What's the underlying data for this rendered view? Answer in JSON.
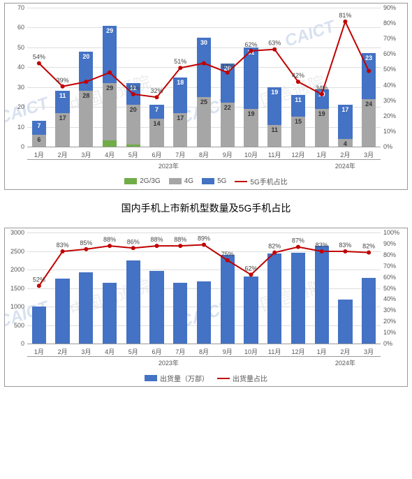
{
  "colors": {
    "series_2g3g": "#70ad47",
    "series_4g": "#a6a6a6",
    "series_5g": "#4472c4",
    "series_line": "#c00000",
    "bar_blue": "#4472c4",
    "grid": "#dddddd",
    "axis": "#999999",
    "bg": "#ffffff"
  },
  "chart1": {
    "type": "stacked_bar_with_line",
    "ylim_left": [
      0,
      70
    ],
    "ytick_left_step": 10,
    "ylim_right": [
      0,
      90
    ],
    "ytick_right_step": 10,
    "right_suffix": "%",
    "categories": [
      "1月",
      "2月",
      "3月",
      "4月",
      "5月",
      "6月",
      "7月",
      "8月",
      "9月",
      "10月",
      "11月",
      "12月",
      "1月",
      "2月",
      "3月"
    ],
    "year_spans": [
      {
        "label": "2023年",
        "from": 0,
        "to": 11
      },
      {
        "label": "2024年",
        "from": 12,
        "to": 14
      }
    ],
    "series": {
      "s2g3g": {
        "label": "2G/3G",
        "color": "#70ad47",
        "values": [
          0,
          0,
          0,
          3,
          1,
          0,
          0,
          0,
          0,
          0,
          0,
          0,
          0,
          0,
          0
        ]
      },
      "s4g": {
        "label": "4G",
        "color": "#a6a6a6",
        "values": [
          6,
          17,
          28,
          29,
          20,
          14,
          17,
          25,
          22,
          19,
          11,
          15,
          19,
          4,
          24
        ],
        "label_color": "#333"
      },
      "s5g": {
        "label": "5G",
        "color": "#4472c4",
        "values": [
          7,
          11,
          20,
          29,
          11,
          7,
          18,
          30,
          20,
          31,
          19,
          11,
          10,
          17,
          23
        ],
        "label_color": "#fff"
      }
    },
    "line": {
      "label": "5G手机占比",
      "color": "#c00000",
      "values_pct": [
        54,
        39,
        42,
        48,
        34,
        32,
        51,
        54,
        48,
        62,
        63,
        42,
        34,
        81,
        49
      ],
      "point_labels": [
        "54%",
        "39%",
        null,
        null,
        "34%",
        "32%",
        "51%",
        null,
        "48%",
        "62%",
        "63%",
        "42%",
        "34%",
        "81%",
        null
      ]
    },
    "legend": [
      "2G/3G",
      "4G",
      "5G",
      "5G手机占比"
    ]
  },
  "title_between": "国内手机上市新机型数量及5G手机占比",
  "chart2": {
    "type": "bar_with_line",
    "ylim_left": [
      0,
      3000
    ],
    "ytick_left_step": 500,
    "ylim_right": [
      0,
      100
    ],
    "ytick_right_step": 10,
    "right_suffix": "%",
    "categories": [
      "1月",
      "2月",
      "3月",
      "4月",
      "5月",
      "6月",
      "7月",
      "8月",
      "9月",
      "10月",
      "11月",
      "12月",
      "1月",
      "2月",
      "3月"
    ],
    "year_spans": [
      {
        "label": "2023年",
        "from": 0,
        "to": 11
      },
      {
        "label": "2024年",
        "from": 12,
        "to": 14
      }
    ],
    "bars": {
      "label": "出货量（万部）",
      "color": "#4472c4",
      "values": [
        1000,
        1760,
        1920,
        1650,
        2250,
        1960,
        1640,
        1680,
        2400,
        1810,
        2440,
        2450,
        2650,
        1190,
        1770
      ]
    },
    "line": {
      "label": "出货量占比",
      "color": "#c00000",
      "values_pct": [
        52,
        83,
        85,
        88,
        86,
        88,
        88,
        89,
        75,
        62,
        82,
        87,
        83,
        83,
        82
      ],
      "point_labels": [
        "52%",
        "83%",
        "85%",
        "88%",
        "86%",
        "88%",
        "88%",
        "89%",
        "75%",
        "62%",
        "82%",
        "87%",
        "83%",
        "83%",
        "82%"
      ]
    },
    "legend": [
      "出货量（万部）",
      "出货量占比"
    ]
  },
  "watermark": {
    "brand": "CAICT",
    "text": "中国信通院"
  }
}
